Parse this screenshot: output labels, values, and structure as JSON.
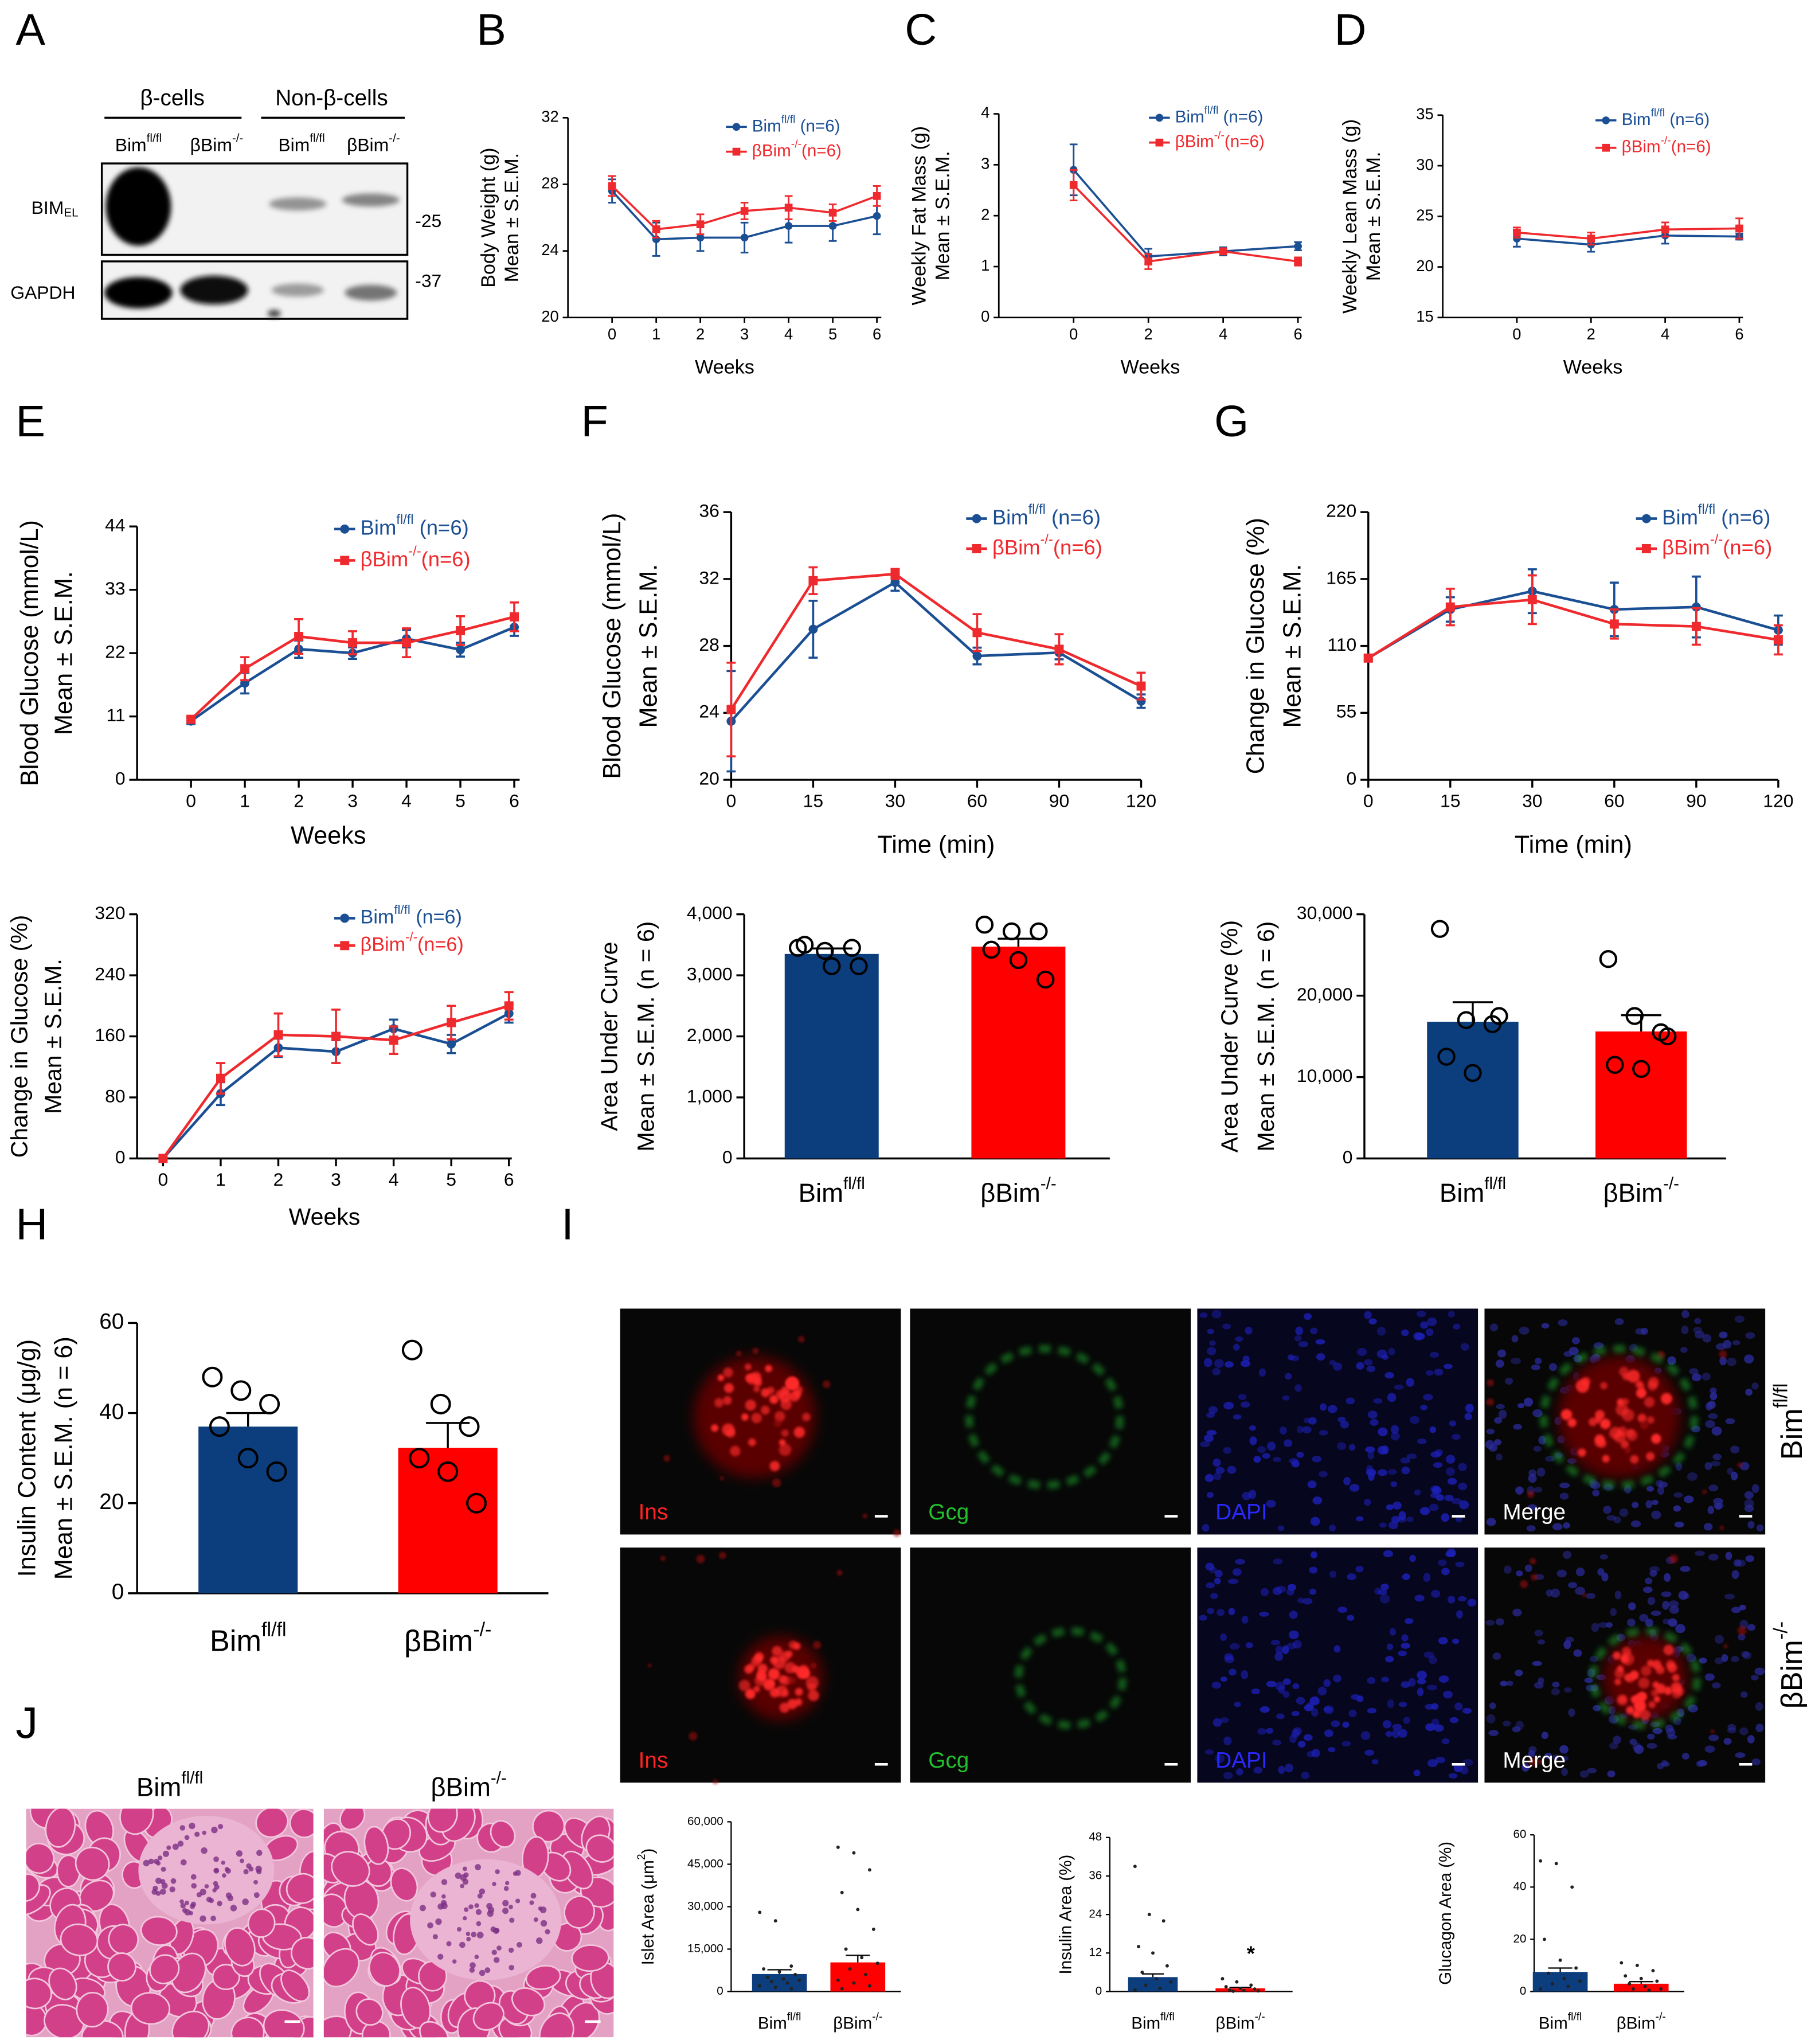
{
  "panel_labels": [
    "A",
    "B",
    "C",
    "D",
    "E",
    "F",
    "G",
    "H",
    "I",
    "J"
  ],
  "blot": {
    "groups": [
      "β-cells",
      "Non-β-cells"
    ],
    "lanes": [
      {
        "text": "Bimfl/fl",
        "sup": "fl/fl"
      },
      {
        "text": "βBim-/-",
        "sup": "-/-"
      },
      {
        "text": "Bimfl/fl",
        "sup": "fl/fl"
      },
      {
        "text": "βBim-/-",
        "sup": "-/-"
      }
    ],
    "rows": [
      {
        "text": "BIMEL",
        "sub": "EL"
      },
      {
        "text": "GAPDH"
      }
    ],
    "markers": [
      "-25",
      "-37"
    ]
  },
  "staining": {
    "rows": [
      {
        "text": "Bimfl/fl",
        "sup": "fl/fl"
      },
      {
        "text": "βBim-/-",
        "sup": "-/-"
      }
    ],
    "channels": [
      "Ins",
      "Gcg",
      "DAPI",
      "Merge"
    ],
    "channel_colors": [
      "#ff2424",
      "#22c02c",
      "#2a2aff",
      "#ffffff"
    ]
  },
  "histology": {
    "titles": [
      {
        "text": "Bimfl/fl",
        "sup": "fl/fl"
      },
      {
        "text": "βBim-/-",
        "sup": "-/-"
      }
    ]
  },
  "chart_data": [
    {
      "type": "line",
      "y_label": [
        "Body Weight (g)",
        "Mean ± S.E.M."
      ],
      "x_label": "Weeks",
      "x": [
        0,
        1,
        2,
        3,
        4,
        5,
        6
      ],
      "xlim": [
        -1,
        6.1
      ],
      "xticks": [
        0,
        1,
        2,
        3,
        4,
        5,
        6
      ],
      "ylim": [
        20,
        32
      ],
      "yticks": [
        20,
        24,
        28,
        32
      ],
      "series": [
        {
          "name": "Bimfl/fl (n=6)",
          "name_sup": "fl/fl",
          "color": "#1b4f93",
          "marker": "circle",
          "values": [
            27.6,
            24.7,
            24.8,
            24.8,
            25.5,
            25.5,
            26.1
          ],
          "errors": [
            0.7,
            1.0,
            0.8,
            0.9,
            1.0,
            0.9,
            1.1
          ]
        },
        {
          "name": "βBim-/-(n=6)",
          "name_sup": "-/-",
          "color": "#ef2a2e",
          "marker": "square",
          "values": [
            27.9,
            25.3,
            25.6,
            26.4,
            26.6,
            26.3,
            27.3
          ],
          "errors": [
            0.6,
            0.5,
            0.6,
            0.5,
            0.7,
            0.5,
            0.6
          ]
        }
      ]
    },
    {
      "type": "line",
      "y_label": [
        "Weekly Fat Mass (g)",
        "Mean ± S.E.M."
      ],
      "x_label": "Weeks",
      "x": [
        0,
        2,
        4,
        6
      ],
      "xlim": [
        -2,
        6.1
      ],
      "xticks": [
        0,
        2,
        4,
        6
      ],
      "ylim": [
        0,
        4
      ],
      "yticks": [
        0,
        1,
        2,
        3,
        4
      ],
      "series": [
        {
          "name": "Bimfl/fl (n=6)",
          "name_sup": "fl/fl",
          "color": "#1b4f93",
          "marker": "circle",
          "values": [
            2.9,
            1.2,
            1.3,
            1.4
          ],
          "errors": [
            0.5,
            0.15,
            0.08,
            0.08
          ]
        },
        {
          "name": "βBim-/-(n=6)",
          "name_sup": "-/-",
          "color": "#ef2a2e",
          "marker": "square",
          "values": [
            2.6,
            1.1,
            1.3,
            1.1
          ],
          "errors": [
            0.3,
            0.15,
            0.05,
            0.08
          ]
        }
      ]
    },
    {
      "type": "line",
      "y_label": [
        "Weekly Lean Mass (g)",
        "Mean ± S.E.M."
      ],
      "x_label": "Weeks",
      "x": [
        0,
        2,
        4,
        6
      ],
      "xlim": [
        -2,
        6.1
      ],
      "xticks": [
        0,
        2,
        4,
        6
      ],
      "ylim": [
        15,
        35
      ],
      "yticks": [
        15,
        20,
        25,
        30,
        35
      ],
      "series": [
        {
          "name": "Bimfl/fl (n=6)",
          "name_sup": "fl/fl",
          "color": "#1b4f93",
          "marker": "circle",
          "values": [
            22.8,
            22.2,
            23.1,
            23.0
          ],
          "errors": [
            0.8,
            0.7,
            0.8,
            0.3
          ]
        },
        {
          "name": "βBim-/-(n=6)",
          "name_sup": "-/-",
          "color": "#ef2a2e",
          "marker": "square",
          "values": [
            23.4,
            22.8,
            23.7,
            23.8
          ],
          "errors": [
            0.5,
            0.6,
            0.7,
            1.0
          ]
        }
      ]
    },
    {
      "type": "line",
      "y_label": [
        "Blood Glucose (mmol/L)",
        "Mean ± S.E.M."
      ],
      "x_label": "Weeks",
      "x": [
        0,
        1,
        2,
        3,
        4,
        5,
        6
      ],
      "xlim": [
        -1,
        6.1
      ],
      "xticks": [
        0,
        1,
        2,
        3,
        4,
        5,
        6
      ],
      "ylim": [
        0,
        44
      ],
      "yticks": [
        0,
        11,
        22,
        33,
        44
      ],
      "series": [
        {
          "name": "Bimfl/fl (n=6)",
          "name_sup": "fl/fl",
          "color": "#1b4f93",
          "marker": "circle",
          "values": [
            10.2,
            16.8,
            22.7,
            22.0,
            24.5,
            22.6,
            26.5
          ],
          "errors": [
            0.5,
            1.8,
            1.5,
            1.0,
            1.5,
            1.2,
            1.5
          ]
        },
        {
          "name": "βBim-/-(n=6)",
          "name_sup": "-/-",
          "color": "#ef2a2e",
          "marker": "square",
          "values": [
            10.5,
            19.3,
            24.9,
            23.8,
            23.8,
            25.9,
            28.3
          ],
          "errors": [
            0.4,
            2.0,
            3.0,
            2.0,
            2.5,
            2.5,
            2.5
          ]
        }
      ]
    },
    {
      "type": "line",
      "y_label": [
        "Blood Glucose (mmol/L)",
        "Mean ± S.E.M."
      ],
      "x_label": "Time (min)",
      "categories": [
        "0",
        "15",
        "30",
        "60",
        "90",
        "120"
      ],
      "ylim": [
        20,
        36
      ],
      "yticks": [
        20,
        24,
        28,
        32,
        36
      ],
      "series": [
        {
          "name": "Bimfl/fl (n=6)",
          "name_sup": "fl/fl",
          "color": "#1b4f93",
          "marker": "circle",
          "values": [
            23.5,
            29.0,
            31.8,
            27.4,
            27.6,
            24.7
          ],
          "errors": [
            3.0,
            1.7,
            0.5,
            0.5,
            0.4,
            0.4
          ]
        },
        {
          "name": "βBim-/-(n=6)",
          "name_sup": "-/-",
          "color": "#ef2a2e",
          "marker": "square",
          "values": [
            24.2,
            31.9,
            32.3,
            28.8,
            27.8,
            25.6
          ],
          "errors": [
            2.8,
            0.8,
            0.3,
            1.1,
            0.9,
            0.8
          ]
        }
      ]
    },
    {
      "type": "line",
      "y_label": [
        "Change in Glucose (%)",
        "Mean ± S.E.M."
      ],
      "x_label": "Time (min)",
      "categories": [
        "0",
        "15",
        "30",
        "60",
        "90",
        "120"
      ],
      "ylim": [
        0,
        220
      ],
      "yticks": [
        0,
        55,
        110,
        165,
        220
      ],
      "series": [
        {
          "name": "Bimfl/fl (n=6)",
          "name_sup": "fl/fl",
          "color": "#1b4f93",
          "marker": "circle",
          "values": [
            100,
            140,
            155,
            140,
            142,
            123
          ],
          "errors": [
            2,
            10,
            18,
            22,
            25,
            12
          ]
        },
        {
          "name": "βBim-/-(n=6)",
          "name_sup": "-/-",
          "color": "#ef2a2e",
          "marker": "square",
          "values": [
            100,
            142,
            148,
            128,
            126,
            115
          ],
          "errors": [
            2,
            15,
            20,
            12,
            15,
            12
          ]
        }
      ]
    },
    {
      "type": "line",
      "y_label": [
        "Change in Glucose (%)",
        "Mean ± S.E.M."
      ],
      "x_label": "Weeks",
      "x": [
        0,
        1,
        2,
        3,
        4,
        5,
        6
      ],
      "xlim": [
        -0.45,
        6.05
      ],
      "xticks": [
        0,
        1,
        2,
        3,
        4,
        5,
        6
      ],
      "ylim": [
        0,
        320
      ],
      "yticks": [
        0,
        80,
        160,
        240,
        320
      ],
      "series": [
        {
          "name": "Bimfl/fl (n=6)",
          "name_sup": "fl/fl",
          "color": "#1b4f93",
          "marker": "circle",
          "values": [
            0,
            85,
            145,
            140,
            170,
            150,
            190
          ],
          "errors": [
            0,
            15,
            12,
            15,
            12,
            12,
            12
          ]
        },
        {
          "name": "βBim-/-(n=6)",
          "name_sup": "-/-",
          "color": "#ef2a2e",
          "marker": "square",
          "values": [
            0,
            105,
            162,
            160,
            155,
            178,
            200
          ],
          "errors": [
            0,
            20,
            28,
            35,
            18,
            22,
            18
          ]
        }
      ]
    },
    {
      "type": "bar",
      "y_label": [
        "Area Under Curve",
        "Mean ± S.E.M. (n = 6)"
      ],
      "categories": [
        "Bimfl/fl",
        "βBim-/-"
      ],
      "category_sup": [
        "fl/fl",
        "-/-"
      ],
      "colors": [
        "#0c3d7d",
        "#fe0000"
      ],
      "values": [
        3350,
        3470
      ],
      "errors": [
        90,
        130
      ],
      "points": [
        [
          3450,
          3400,
          3450,
          3500,
          3150,
          3150
        ],
        [
          3830,
          3720,
          3720,
          3420,
          3250,
          2930
        ]
      ],
      "point_color": "#000000",
      "ylim": [
        0,
        4000
      ],
      "yticks": [
        0,
        {
          "value": 1000,
          "label": "1,000"
        },
        {
          "value": 2000,
          "label": "2,000"
        },
        {
          "value": 3000,
          "label": "3,000"
        },
        {
          "value": 4000,
          "label": "4,000"
        }
      ]
    },
    {
      "type": "bar",
      "y_label": [
        "Area Under Curve (%)",
        "Mean ± S.E.M. (n = 6)"
      ],
      "categories": [
        "Bimfl/fl",
        "βBim-/-"
      ],
      "category_sup": [
        "fl/fl",
        "-/-"
      ],
      "colors": [
        "#0c3d7d",
        "#fe0000"
      ],
      "values": [
        16800,
        15600
      ],
      "errors": [
        2400,
        2000
      ],
      "points": [
        [
          28200,
          17000,
          16500,
          12500,
          10500,
          17500
        ],
        [
          24500,
          17500,
          15500,
          11500,
          11000,
          15000
        ]
      ],
      "point_color": "#000000",
      "ylim": [
        0,
        30000
      ],
      "yticks": [
        0,
        {
          "value": 10000,
          "label": "10,000"
        },
        {
          "value": 20000,
          "label": "20,000"
        },
        {
          "value": 30000,
          "label": "30,000"
        }
      ]
    },
    {
      "type": "bar",
      "y_label": [
        "Insulin Content (μg/g)",
        "Mean ± S.E.M. (n = 6)"
      ],
      "categories": [
        "Bimfl/fl",
        "βBim-/-"
      ],
      "category_sup": [
        "fl/fl",
        "-/-"
      ],
      "colors": [
        "#0c3d7d",
        "#fe0000"
      ],
      "values": [
        37,
        32.3
      ],
      "errors": [
        3,
        5.5
      ],
      "points": [
        [
          48,
          45,
          42,
          37,
          30,
          27
        ],
        [
          54,
          42,
          37,
          30,
          27,
          20
        ]
      ],
      "point_color": "#000000",
      "ylim": [
        0,
        60
      ],
      "yticks": [
        0,
        20,
        40,
        60
      ]
    },
    {
      "type": "bar",
      "y_label": [
        "Islet Area (μm2)"
      ],
      "y_label_sup": "2",
      "categories": [
        "Bimfl/fl",
        "βBim-/-"
      ],
      "category_sup": [
        "fl/fl",
        "-/-"
      ],
      "colors": [
        "#0c3d7d",
        "#fe0000"
      ],
      "values": [
        6200,
        10300
      ],
      "errors": [
        1500,
        2500
      ],
      "points": [
        [
          28000,
          25000,
          9000,
          8000,
          7000,
          6000,
          5000,
          4500,
          4000,
          3500,
          3000,
          2000,
          1500,
          1000
        ],
        [
          51000,
          49000,
          43000,
          35000,
          29000,
          22000,
          15000,
          12000,
          10000,
          8000,
          6000,
          4000,
          3000,
          2000,
          1000
        ]
      ],
      "point_color": "#222222",
      "ylim": [
        0,
        60000
      ],
      "yticks": [
        0,
        {
          "value": 15000,
          "label": "15,000"
        },
        {
          "value": 30000,
          "label": "30,000"
        },
        {
          "value": 45000,
          "label": "45,000"
        },
        {
          "value": 60000,
          "label": "60,000"
        }
      ]
    },
    {
      "type": "bar",
      "y_label": [
        "Insulin Area (%)"
      ],
      "annotation": "*",
      "categories": [
        "Bimfl/fl",
        "βBim-/-"
      ],
      "category_sup": [
        "fl/fl",
        "-/-"
      ],
      "colors": [
        "#0c3d7d",
        "#fe0000"
      ],
      "values": [
        4.5,
        1.0
      ],
      "errors": [
        1.0,
        0.3
      ],
      "points": [
        [
          39,
          24,
          22,
          14,
          12,
          8,
          6,
          4,
          3,
          2,
          1,
          0.5
        ],
        [
          4,
          3,
          2,
          1.5,
          1,
          0.8,
          0.5,
          0.3,
          0.2,
          0.1
        ]
      ],
      "point_color": "#222222",
      "ylim": [
        0,
        48
      ],
      "yticks": [
        0,
        12,
        24,
        36,
        48
      ]
    },
    {
      "type": "bar",
      "y_label": [
        "Glucagon Area (%)"
      ],
      "categories": [
        "Bimfl/fl",
        "βBim-/-"
      ],
      "category_sup": [
        "fl/fl",
        "-/-"
      ],
      "colors": [
        "#0c3d7d",
        "#fe0000"
      ],
      "values": [
        7.5,
        3.0
      ],
      "errors": [
        1.5,
        0.8
      ],
      "points": [
        [
          50,
          49,
          40,
          20,
          12,
          9,
          7,
          5,
          4,
          3,
          2,
          1
        ],
        [
          11,
          10,
          8,
          6,
          5,
          4,
          3,
          2,
          1,
          1,
          0.5
        ]
      ],
      "point_color": "#222222",
      "ylim": [
        0,
        60
      ],
      "yticks": [
        0,
        20,
        40,
        60
      ]
    }
  ]
}
